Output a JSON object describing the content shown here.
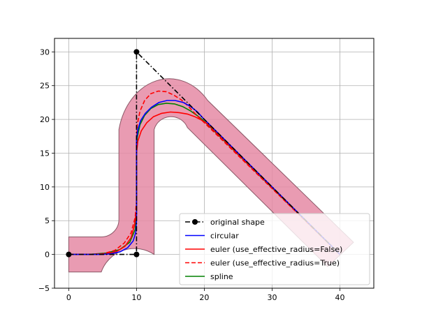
{
  "chart_data": {
    "type": "line",
    "title": "",
    "xlabel": "",
    "ylabel": "",
    "xlim": [
      -2.1,
      45
    ],
    "ylim": [
      -5,
      32
    ],
    "xticks": [
      0,
      10,
      20,
      30,
      40
    ],
    "yticks": [
      -5,
      0,
      5,
      10,
      15,
      20,
      25,
      30
    ],
    "grid": true,
    "legend_position": "lower-right",
    "background_shape": {
      "description_color": "#e58aa5",
      "edge_color": "#8a5766",
      "half_width": 2.6,
      "bend_radius": 2.6
    },
    "series": [
      {
        "name": "original shape",
        "color": "#000000",
        "style": "dashdot",
        "marker": "circle",
        "x": [
          0,
          10,
          10,
          20,
          40
        ],
        "y": [
          0,
          0,
          30,
          20,
          0
        ]
      },
      {
        "name": "circular",
        "color": "#0000ff",
        "style": "solid",
        "x": [
          0,
          5.0,
          6.3,
          7.6,
          8.7,
          9.5,
          9.9,
          10.0,
          10.0,
          10.0,
          10.2,
          10.6,
          11.3,
          12.2,
          13.3,
          14.5,
          15.7,
          16.9,
          18.0,
          19.0,
          19.8,
          40.0
        ],
        "y": [
          0,
          0,
          0.1,
          0.4,
          1.0,
          2.0,
          3.3,
          5.0,
          15.0,
          17.0,
          18.5,
          19.8,
          20.9,
          21.8,
          22.5,
          22.8,
          22.8,
          22.5,
          21.9,
          21.1,
          20.2,
          0
        ]
      },
      {
        "name": "euler (use_effective_radius=False)",
        "color": "#ff0000",
        "style": "solid",
        "x": [
          0,
          3.5,
          5.5,
          7.0,
          8.3,
          9.2,
          9.7,
          10.0,
          10.0,
          10.2,
          10.7,
          11.5,
          12.5,
          13.7,
          15.0,
          16.3,
          17.5,
          18.6,
          19.6,
          20.5,
          40.0
        ],
        "y": [
          0,
          0,
          0.1,
          0.4,
          1.2,
          2.5,
          4.3,
          6.5,
          15.0,
          16.8,
          18.3,
          19.5,
          20.4,
          20.9,
          21.1,
          21.0,
          20.8,
          20.4,
          19.9,
          19.3,
          0
        ]
      },
      {
        "name": "euler (use_effective_radius=True)",
        "color": "#ff0000",
        "style": "dashed",
        "x": [
          0,
          2.5,
          5.0,
          6.8,
          8.2,
          9.2,
          9.8,
          10.0,
          10.0,
          10.1,
          10.5,
          11.2,
          12.1,
          13.2,
          14.4,
          15.5,
          16.6,
          17.6,
          18.5,
          19.3,
          40.0
        ],
        "y": [
          0,
          0,
          0.1,
          0.6,
          1.7,
          3.2,
          5.5,
          8.0,
          17.0,
          19.2,
          21.2,
          22.8,
          23.8,
          24.2,
          24.1,
          23.6,
          22.9,
          22.0,
          21.0,
          20.2,
          0
        ]
      },
      {
        "name": "spline",
        "color": "#008000",
        "style": "solid",
        "x": [
          0,
          3.0,
          5.5,
          7.5,
          9.0,
          9.8,
          10.0,
          10.0,
          10.1,
          10.5,
          11.2,
          12.1,
          13.2,
          14.4,
          15.6,
          16.8,
          17.9,
          18.9,
          19.8,
          40.0
        ],
        "y": [
          0,
          0,
          0.2,
          0.7,
          1.8,
          3.7,
          6.0,
          15.0,
          17.3,
          19.2,
          20.6,
          21.6,
          22.2,
          22.4,
          22.3,
          21.9,
          21.3,
          20.6,
          19.9,
          0
        ]
      }
    ]
  }
}
